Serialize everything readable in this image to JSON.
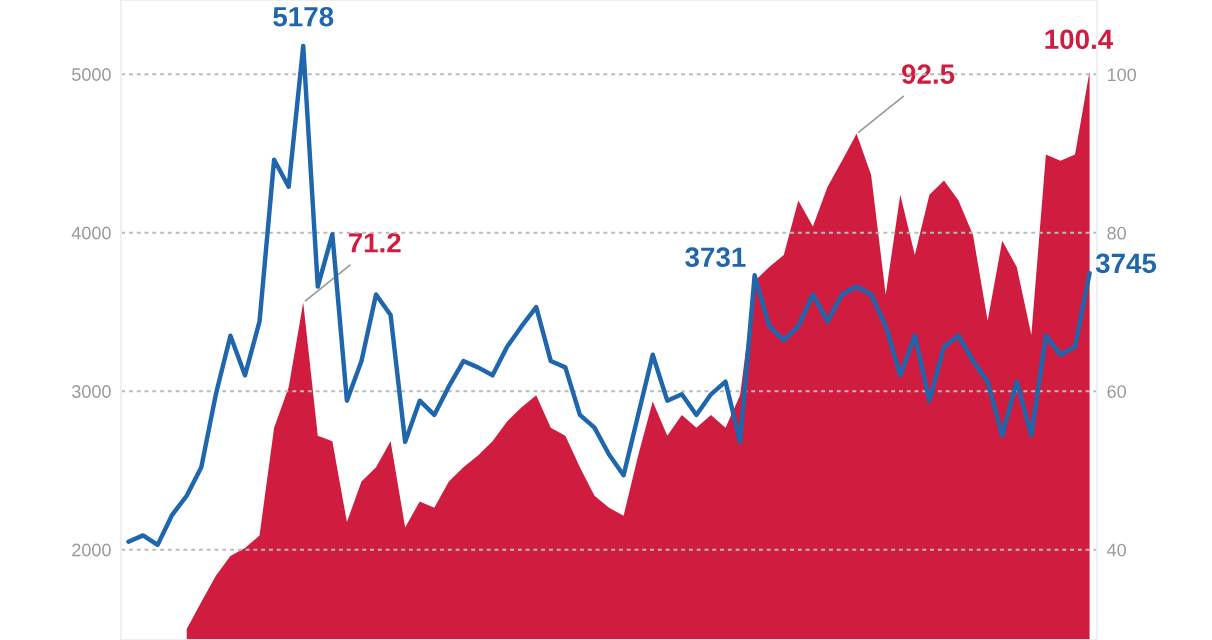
{
  "chart_data": {
    "type": "line",
    "categories": [
      null,
      null,
      null,
      null,
      null,
      null,
      null,
      null,
      null,
      null,
      null,
      null,
      null,
      null,
      null,
      null,
      null,
      null,
      null,
      null,
      null,
      null,
      null,
      null,
      null,
      null,
      null,
      null,
      null,
      null,
      null,
      null,
      null,
      null,
      null,
      null,
      null,
      null,
      null,
      null,
      null,
      null,
      null,
      null,
      null,
      null,
      null,
      null,
      null,
      null,
      null,
      null,
      null,
      null,
      null,
      null,
      null,
      null,
      null,
      null,
      null,
      null,
      null,
      null,
      null,
      null,
      null
    ],
    "series": [
      {
        "axis": "y",
        "color": "#1f66ad",
        "values": [
          2050,
          2090,
          2030,
          2220,
          2340,
          2520,
          2980,
          3350,
          3100,
          3440,
          4460,
          4290,
          5178,
          3660,
          3990,
          2940,
          3190,
          3610,
          3480,
          2680,
          2940,
          2850,
          3030,
          3190,
          3150,
          3100,
          3280,
          3410,
          3530,
          3190,
          3150,
          2850,
          2770,
          2600,
          2470,
          2850,
          3230,
          2940,
          2980,
          2850,
          2980,
          3060,
          2680,
          3731,
          3410,
          3320,
          3410,
          3610,
          3440,
          3610,
          3660,
          3610,
          3410,
          3100,
          3350,
          2940,
          3280,
          3350,
          3190,
          3060,
          2720,
          3060,
          2720,
          3350,
          3230,
          3280,
          3745
        ],
        "value_labels": [
          null,
          null,
          null,
          null,
          null,
          null,
          null,
          null,
          null,
          null,
          null,
          null,
          "5178",
          null,
          null,
          null,
          null,
          null,
          null,
          null,
          null,
          null,
          null,
          null,
          null,
          null,
          null,
          null,
          null,
          null,
          null,
          null,
          null,
          null,
          null,
          null,
          null,
          null,
          null,
          null,
          null,
          null,
          null,
          "3731",
          null,
          null,
          null,
          null,
          null,
          null,
          null,
          null,
          null,
          null,
          null,
          null,
          null,
          null,
          null,
          null,
          null,
          null,
          null,
          null,
          null,
          null,
          "3745"
        ]
      },
      {
        "type": "area",
        "axis": "y2",
        "color": "#d01c3f",
        "values": [
          null,
          null,
          null,
          null,
          30,
          33.4,
          36.7,
          39.2,
          40.2,
          41.8,
          55.4,
          60.5,
          71.2,
          54.4,
          53.7,
          43.5,
          48.6,
          50.4,
          53.7,
          42.8,
          46.1,
          45.3,
          48.6,
          50.4,
          51.9,
          53.7,
          56.2,
          58.0,
          59.5,
          55.4,
          54.4,
          50.4,
          46.8,
          45.3,
          44.3,
          51.9,
          58.7,
          54.4,
          57.0,
          55.4,
          57.0,
          55.4,
          59.5,
          73.9,
          75.7,
          77.2,
          84.1,
          80.8,
          85.8,
          89.1,
          92.5,
          87.3,
          72.2,
          84.8,
          77.2,
          84.8,
          86.6,
          84.1,
          79.7,
          68.9,
          79.0,
          75.7,
          67.1,
          89.9,
          89.1,
          89.9,
          100.4
        ],
        "value_labels": [
          null,
          null,
          null,
          null,
          null,
          null,
          null,
          null,
          null,
          null,
          null,
          null,
          "71.2",
          null,
          null,
          null,
          null,
          null,
          null,
          null,
          null,
          null,
          null,
          null,
          null,
          null,
          null,
          null,
          null,
          null,
          null,
          null,
          null,
          null,
          null,
          null,
          null,
          null,
          null,
          null,
          null,
          null,
          null,
          null,
          null,
          null,
          null,
          null,
          null,
          null,
          "92.5",
          null,
          null,
          null,
          null,
          null,
          null,
          null,
          null,
          null,
          null,
          null,
          null,
          null,
          null,
          null,
          "100.4"
        ]
      }
    ],
    "ylim": [
      1430,
      5468
    ],
    "yticks": [
      2000,
      3000,
      4000,
      5000
    ],
    "y2lim": [
      28.6,
      109.4
    ],
    "y2ticks": [
      40,
      60,
      80,
      100
    ],
    "grid": "y",
    "tick_labels": "y"
  }
}
